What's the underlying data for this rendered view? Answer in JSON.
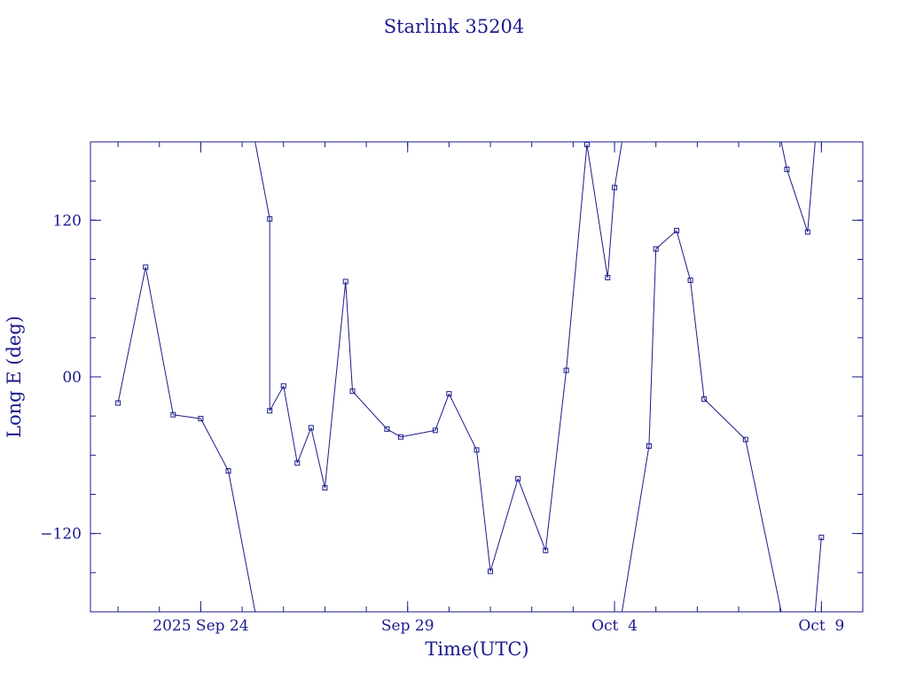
{
  "chart_data": {
    "type": "line",
    "title": "Starlink 35204",
    "xlabel": "Time(UTC)",
    "ylabel": "Long E (deg)",
    "xlim": [
      "2025-09-21 08:00",
      "2025-10-10 00:00"
    ],
    "ylim": [
      -180,
      180
    ],
    "x_tick_labels": [
      {
        "label": "2025 Sep 24",
        "x": "2025-09-24"
      },
      {
        "label": "Sep 29",
        "x": "2025-09-29"
      },
      {
        "label": "Oct  4",
        "x": "2025-10-04"
      },
      {
        "label": "Oct  9",
        "x": "2025-10-09"
      }
    ],
    "y_tick_labels": [
      {
        "label": "120",
        "y": 120
      },
      {
        "label": "00",
        "y": 0
      },
      {
        "label": "−120",
        "y": -120
      }
    ],
    "line_color": "#1a1a8c",
    "grid": false,
    "series": [
      {
        "name": "",
        "points": [
          {
            "x": "2025-09-22 00:00",
            "y": -20
          },
          {
            "x": "2025-09-22 16:00",
            "y": 84
          },
          {
            "x": "2025-09-23 08:00",
            "y": -29
          },
          {
            "x": "2025-09-24 00:00",
            "y": -32
          },
          {
            "x": "2025-09-24 16:00",
            "y": -72
          },
          {
            "x": "2025-09-25 16:00",
            "y": 121
          },
          {
            "x": "2025-09-25 16:00",
            "y": -26
          },
          {
            "x": "2025-09-26 00:00",
            "y": -7
          },
          {
            "x": "2025-09-26 08:00",
            "y": -66
          },
          {
            "x": "2025-09-26 16:00",
            "y": -39
          },
          {
            "x": "2025-09-27 00:00",
            "y": -85
          },
          {
            "x": "2025-09-27 12:00",
            "y": 73
          },
          {
            "x": "2025-09-27 16:00",
            "y": -11
          },
          {
            "x": "2025-09-28 12:00",
            "y": -40
          },
          {
            "x": "2025-09-28 20:00",
            "y": -46
          },
          {
            "x": "2025-09-29 16:00",
            "y": -41
          },
          {
            "x": "2025-09-30 00:00",
            "y": -13
          },
          {
            "x": "2025-09-30 16:00",
            "y": -56
          },
          {
            "x": "2025-10-01 00:00",
            "y": -149
          },
          {
            "x": "2025-10-01 16:00",
            "y": -78
          },
          {
            "x": "2025-10-02 08:00",
            "y": -133
          },
          {
            "x": "2025-10-02 20:00",
            "y": 5
          },
          {
            "x": "2025-10-03 08:00",
            "y": 178
          },
          {
            "x": "2025-10-03 20:00",
            "y": 76
          },
          {
            "x": "2025-10-04 00:00",
            "y": 145
          },
          {
            "x": "2025-10-04 20:00",
            "y": -53
          },
          {
            "x": "2025-10-05 00:00",
            "y": 98
          },
          {
            "x": "2025-10-05 12:00",
            "y": 112
          },
          {
            "x": "2025-10-05 20:00",
            "y": 74
          },
          {
            "x": "2025-10-06 04:00",
            "y": -17
          },
          {
            "x": "2025-10-07 04:00",
            "y": -48
          },
          {
            "x": "2025-10-08 04:00",
            "y": 159
          },
          {
            "x": "2025-10-08 16:00",
            "y": 111
          },
          {
            "x": "2025-10-09 00:00",
            "y": -123
          }
        ]
      }
    ]
  }
}
